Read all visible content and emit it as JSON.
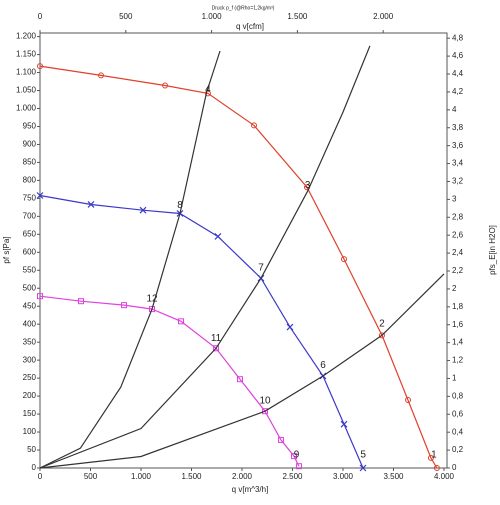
{
  "chart_data": {
    "type": "line",
    "title": "Druck p_f (@Rho=1,2kg/m³)",
    "x_label": "q v[m^3/h]",
    "x2_label": "q v[cfm]",
    "y_label": "pf s[Pa]",
    "y2_label": "pfs_E[in H2O]",
    "xlim": [
      0,
      4030
    ],
    "xticks": [
      0,
      500,
      {
        "value": 1000,
        "label": "1.000"
      },
      {
        "value": 1500,
        "label": "1.500"
      },
      {
        "value": 2000,
        "label": "2.000"
      },
      {
        "value": 2500,
        "label": "2.500"
      },
      {
        "value": 3000,
        "label": "3.000"
      },
      {
        "value": 3500,
        "label": "3.500"
      },
      {
        "value": 4000,
        "label": "4.000"
      }
    ],
    "x2lim": [
      0,
      2372
    ],
    "x2ticks": [
      0,
      500,
      {
        "value": 1000,
        "label": "1.000"
      },
      {
        "value": 1500,
        "label": "1.500"
      },
      {
        "value": 2000,
        "label": "2.000"
      }
    ],
    "ylim": [
      0,
      1210
    ],
    "yticks": [
      0,
      50,
      100,
      150,
      200,
      250,
      300,
      350,
      400,
      450,
      500,
      550,
      600,
      650,
      700,
      750,
      800,
      850,
      900,
      950,
      {
        "value": 1000,
        "label": "1.000"
      },
      {
        "value": 1050,
        "label": "1.050"
      },
      {
        "value": 1100,
        "label": "1.100"
      },
      {
        "value": 1150,
        "label": "1.150"
      },
      {
        "value": 1200,
        "label": "1.200"
      }
    ],
    "y2lim": [
      0,
      4.858
    ],
    "y2ticks": [
      0,
      {
        "value": 0.2,
        "label": "0,2"
      },
      {
        "value": 0.4,
        "label": "0,4"
      },
      {
        "value": 0.6,
        "label": "0,6"
      },
      {
        "value": 0.8,
        "label": "0,8"
      },
      1,
      {
        "value": 1.2,
        "label": "1,2"
      },
      {
        "value": 1.4,
        "label": "1,4"
      },
      {
        "value": 1.6,
        "label": "1,6"
      },
      {
        "value": 1.8,
        "label": "1,8"
      },
      2,
      {
        "value": 2.2,
        "label": "2,2"
      },
      {
        "value": 2.4,
        "label": "2,4"
      },
      {
        "value": 2.6,
        "label": "2,6"
      },
      {
        "value": 2.8,
        "label": "2,8"
      },
      3,
      {
        "value": 3.2,
        "label": "3,2"
      },
      {
        "value": 3.4,
        "label": "3,4"
      },
      {
        "value": 3.6,
        "label": "3,6"
      },
      {
        "value": 3.8,
        "label": "3,8"
      },
      4,
      {
        "value": 4.2,
        "label": "4,2"
      },
      {
        "value": 4.4,
        "label": "4,4"
      },
      {
        "value": 4.6,
        "label": "4,6"
      },
      {
        "value": 4.8,
        "label": "4,8"
      }
    ],
    "series": [
      {
        "color": "#e0402a",
        "marker": "circle",
        "x": [
          0,
          604,
          1238,
          1663,
          2119,
          2644,
          3010,
          3386,
          3644,
          3871,
          3930
        ],
        "values": [
          1118,
          1092,
          1064,
          1042,
          953,
          781,
          581,
          369,
          189,
          28,
          0
        ]
      },
      {
        "color": "#3a3ac8",
        "marker": "cross",
        "x": [
          0,
          505,
          1020,
          1386,
          1762,
          2188,
          2475,
          2802,
          3010,
          3198
        ],
        "values": [
          758,
          733,
          717,
          708,
          644,
          528,
          392,
          256,
          122,
          0
        ]
      },
      {
        "color": "#e040e0",
        "marker": "square",
        "x": [
          0,
          406,
          832,
          1109,
          1396,
          1743,
          1980,
          2228,
          2386,
          2515,
          2564
        ],
        "values": [
          478,
          464,
          453,
          442,
          408,
          333,
          247,
          158,
          78,
          33,
          5
        ]
      },
      {
        "color": "#333333",
        "marker": "none",
        "x": [
          0,
          400,
          800,
          1109,
          1386,
          1650,
          1782
        ],
        "values": [
          0,
          55,
          225,
          442,
          708,
          1045,
          1160
        ]
      },
      {
        "color": "#333333",
        "marker": "none",
        "x": [
          0,
          1000,
          1743,
          2188,
          2650,
          3000,
          3267
        ],
        "values": [
          0,
          110,
          333,
          528,
          770,
          990,
          1174
        ]
      },
      {
        "color": "#333333",
        "marker": "none",
        "x": [
          0,
          1000,
          2228,
          2802,
          3386,
          4000
        ],
        "values": [
          0,
          32,
          158,
          256,
          369,
          540
        ]
      }
    ],
    "annotations": [
      {
        "text": "4",
        "x": 1663,
        "y": 1042
      },
      {
        "text": "3",
        "x": 2650,
        "y": 775
      },
      {
        "text": "2",
        "x": 3386,
        "y": 390
      },
      {
        "text": "1",
        "x": 3900,
        "y": 25
      },
      {
        "text": "8",
        "x": 1386,
        "y": 720
      },
      {
        "text": "7",
        "x": 2188,
        "y": 545
      },
      {
        "text": "6",
        "x": 2802,
        "y": 275
      },
      {
        "text": "5",
        "x": 3200,
        "y": 25
      },
      {
        "text": "12",
        "x": 1109,
        "y": 460
      },
      {
        "text": "11",
        "x": 1743,
        "y": 350
      },
      {
        "text": "10",
        "x": 2228,
        "y": 175
      },
      {
        "text": "9",
        "x": 2540,
        "y": 25
      }
    ]
  }
}
